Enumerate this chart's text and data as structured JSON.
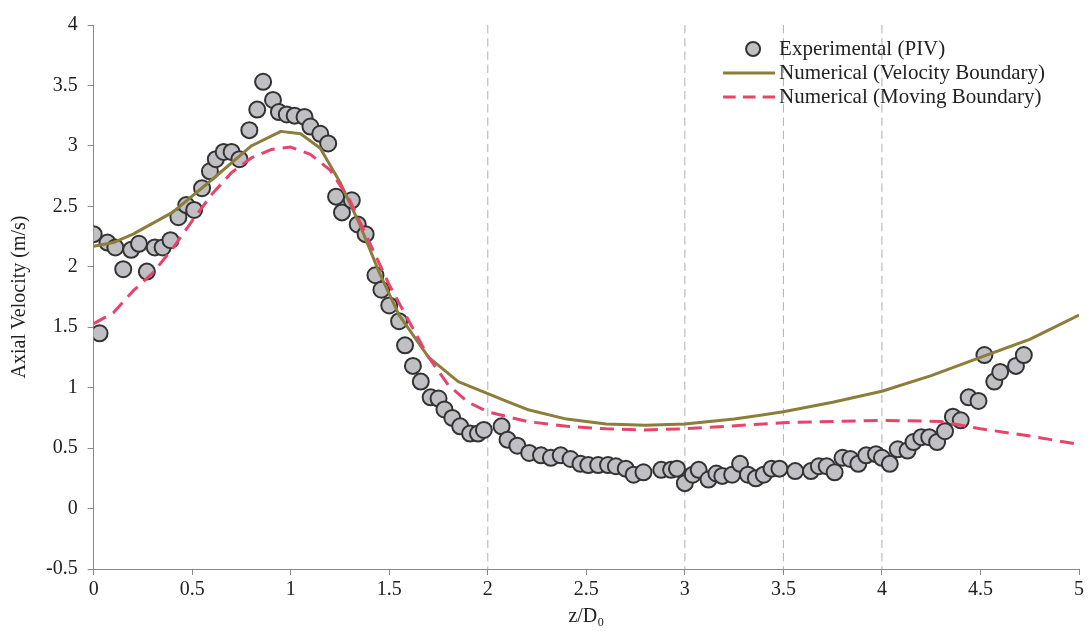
{
  "chart_data": {
    "type": "scatter",
    "xlabel": "z/D₀",
    "ylabel": "Axial Velocity (m/s)",
    "xlim": [
      0,
      5
    ],
    "xticks": [
      0,
      0.5,
      1,
      1.5,
      2,
      2.5,
      3,
      3.5,
      4,
      4.5,
      5
    ],
    "ylim": [
      -0.5,
      4
    ],
    "yticks": [
      -0.5,
      0,
      0.5,
      1,
      1.5,
      2,
      2.5,
      3,
      3.5,
      4
    ],
    "grid": false,
    "legend": "top right",
    "ref_lines": [
      {
        "axis": "x",
        "value": 2,
        "color": "#b0b0b0",
        "line_style": "dashed"
      },
      {
        "axis": "x",
        "value": 3,
        "color": "#b0b0b0",
        "line_style": "dashed"
      },
      {
        "axis": "x",
        "value": 3.5,
        "color": "#b0b0b0",
        "line_style": "dashed"
      },
      {
        "axis": "x",
        "value": 4,
        "color": "#b0b0b0",
        "line_style": "dashed"
      }
    ],
    "series": [
      {
        "name": "Experimental (PIV)",
        "marker": "circle",
        "color": "#c0c0c4",
        "x": [
          0,
          0.03,
          0.07,
          0.11,
          0.15,
          0.19,
          0.23,
          0.27,
          0.31,
          0.35,
          0.39,
          0.43,
          0.47,
          0.51,
          0.55,
          0.59,
          0.62,
          0.66,
          0.7,
          0.74,
          0.79,
          0.83,
          0.86,
          0.91,
          0.94,
          0.98,
          1.02,
          1.07,
          1.1,
          1.15,
          1.19,
          1.23,
          1.26,
          1.31,
          1.34,
          1.38,
          1.43,
          1.46,
          1.5,
          1.55,
          1.58,
          1.62,
          1.66,
          1.71,
          1.75,
          1.78,
          1.82,
          1.86,
          1.91,
          1.95,
          1.98,
          2.07,
          2.1,
          2.15,
          2.21,
          2.27,
          2.32,
          2.37,
          2.42,
          2.47,
          2.51,
          2.56,
          2.61,
          2.65,
          2.7,
          2.74,
          2.79,
          2.88,
          2.93,
          2.96,
          3,
          3.04,
          3.07,
          3.12,
          3.16,
          3.19,
          3.24,
          3.28,
          3.32,
          3.36,
          3.4,
          3.44,
          3.48,
          3.56,
          3.64,
          3.68,
          3.72,
          3.76,
          3.8,
          3.84,
          3.88,
          3.92,
          3.97,
          4,
          4.04,
          4.08,
          4.13,
          4.16,
          4.2,
          4.24,
          4.28,
          4.32,
          4.36,
          4.4,
          4.44,
          4.49,
          4.52,
          4.57,
          4.6,
          4.68,
          4.72
        ],
        "values": [
          2.27,
          1.45,
          2.2,
          2.16,
          1.98,
          2.14,
          2.19,
          1.96,
          2.16,
          2.16,
          2.22,
          2.41,
          2.51,
          2.47,
          2.65,
          2.79,
          2.89,
          2.95,
          2.95,
          2.89,
          3.13,
          3.3,
          3.53,
          3.38,
          3.28,
          3.26,
          3.25,
          3.24,
          3.16,
          3.1,
          3.02,
          2.58,
          2.45,
          2.55,
          2.35,
          2.27,
          1.93,
          1.81,
          1.68,
          1.55,
          1.35,
          1.18,
          1.05,
          0.92,
          0.91,
          0.82,
          0.75,
          0.68,
          0.62,
          0.62,
          0.65,
          0.68,
          0.57,
          0.52,
          0.46,
          0.44,
          0.42,
          0.44,
          0.41,
          0.37,
          0.36,
          0.36,
          0.36,
          0.35,
          0.33,
          0.28,
          0.3,
          0.32,
          0.32,
          0.33,
          0.21,
          0.28,
          0.32,
          0.24,
          0.29,
          0.27,
          0.28,
          0.37,
          0.28,
          0.25,
          0.28,
          0.33,
          0.33,
          0.31,
          0.31,
          0.35,
          0.35,
          0.3,
          0.42,
          0.41,
          0.37,
          0.44,
          0.45,
          0.42,
          0.37,
          0.49,
          0.48,
          0.55,
          0.59,
          0.59,
          0.55,
          0.64,
          0.76,
          0.73,
          0.92,
          0.89,
          1.27,
          1.05,
          1.13,
          1.18,
          1.27
        ]
      },
      {
        "name": "Numerical (Velocity Boundary)",
        "type": "line",
        "marker": "none",
        "line_style": "solid",
        "color": "#8b7d3a",
        "x": [
          0,
          0.1,
          0.2,
          0.4,
          0.6,
          0.8,
          0.95,
          1.05,
          1.15,
          1.25,
          1.35,
          1.45,
          1.55,
          1.7,
          1.85,
          2,
          2.2,
          2.4,
          2.6,
          2.8,
          3,
          3.25,
          3.5,
          3.75,
          4,
          4.25,
          4.5,
          4.75,
          5
        ],
        "values": [
          2.17,
          2.2,
          2.27,
          2.45,
          2.72,
          3,
          3.12,
          3.1,
          2.98,
          2.7,
          2.35,
          1.95,
          1.6,
          1.25,
          1.05,
          0.95,
          0.82,
          0.74,
          0.7,
          0.69,
          0.7,
          0.74,
          0.8,
          0.88,
          0.97,
          1.1,
          1.25,
          1.4,
          1.6
        ]
      },
      {
        "name": "Numerical (Moving Boundary)",
        "type": "line",
        "marker": "none",
        "line_style": "dashed",
        "color": "#e8436a",
        "x": [
          0,
          0.1,
          0.2,
          0.3,
          0.4,
          0.5,
          0.6,
          0.7,
          0.8,
          0.9,
          1,
          1.1,
          1.2,
          1.3,
          1.4,
          1.5,
          1.6,
          1.7,
          1.8,
          1.9,
          2,
          2.2,
          2.4,
          2.6,
          2.8,
          3,
          3.5,
          4,
          4.3,
          4.5,
          4.75,
          5
        ],
        "values": [
          1.53,
          1.62,
          1.8,
          1.95,
          2.15,
          2.38,
          2.6,
          2.78,
          2.9,
          2.97,
          2.99,
          2.93,
          2.8,
          2.55,
          2.2,
          1.85,
          1.55,
          1.25,
          1.02,
          0.88,
          0.8,
          0.72,
          0.68,
          0.66,
          0.65,
          0.66,
          0.71,
          0.73,
          0.72,
          0.66,
          0.6,
          0.53
        ]
      }
    ]
  }
}
